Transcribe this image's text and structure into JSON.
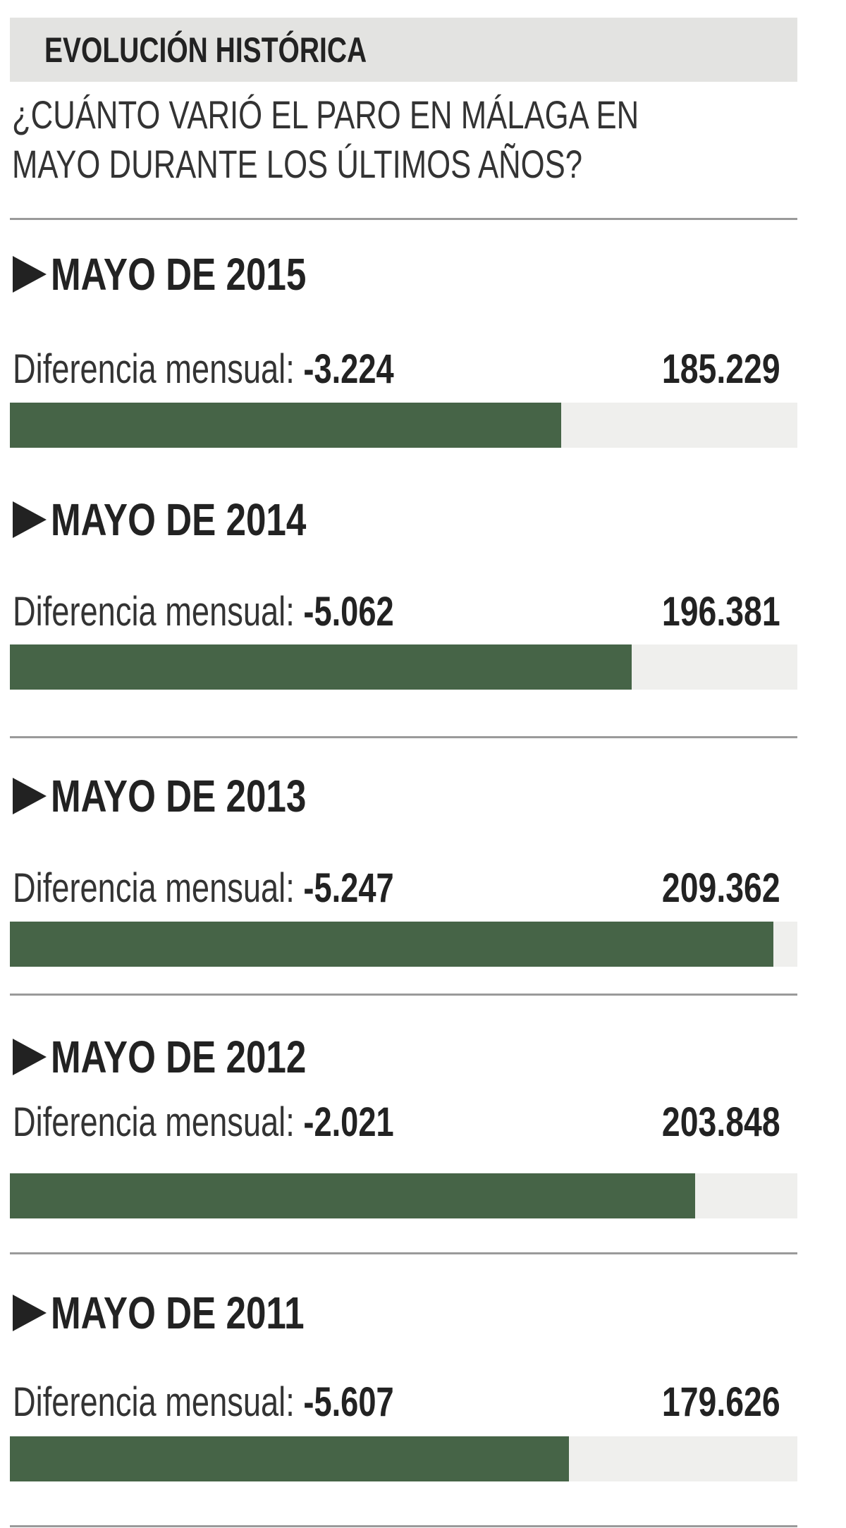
{
  "header": {
    "title": "EVOLUCIÓN HISTÓRICA"
  },
  "subtitle": {
    "line1": "¿CUÁNTO VARIÓ EL PARO EN MÁLAGA EN",
    "line2": "MAYO DURANTE LOS ÚLTIMOS AÑOS?"
  },
  "colors": {
    "bar_fill": "#466447",
    "bar_track": "#efefed",
    "header_band": "#e3e3e1"
  },
  "chart_data": {
    "type": "bar",
    "orientation": "horizontal",
    "label_prefix": "Diferencia mensual:",
    "items": [
      {
        "title": "MAYO DE 2015",
        "diferencia": "-3.224",
        "total": "185.229",
        "fill_fraction": 0.7
      },
      {
        "title": "MAYO DE 2014",
        "diferencia": "-5.062",
        "total": "196.381",
        "fill_fraction": 0.79
      },
      {
        "title": "MAYO DE 2013",
        "diferencia": "-5.247",
        "total": "209.362",
        "fill_fraction": 0.97
      },
      {
        "title": "MAYO DE 2012",
        "diferencia": "-2.021",
        "total": "203.848",
        "fill_fraction": 0.87
      },
      {
        "title": "MAYO DE 2011",
        "diferencia": "-5.607",
        "total": "179.626",
        "fill_fraction": 0.71
      }
    ]
  }
}
